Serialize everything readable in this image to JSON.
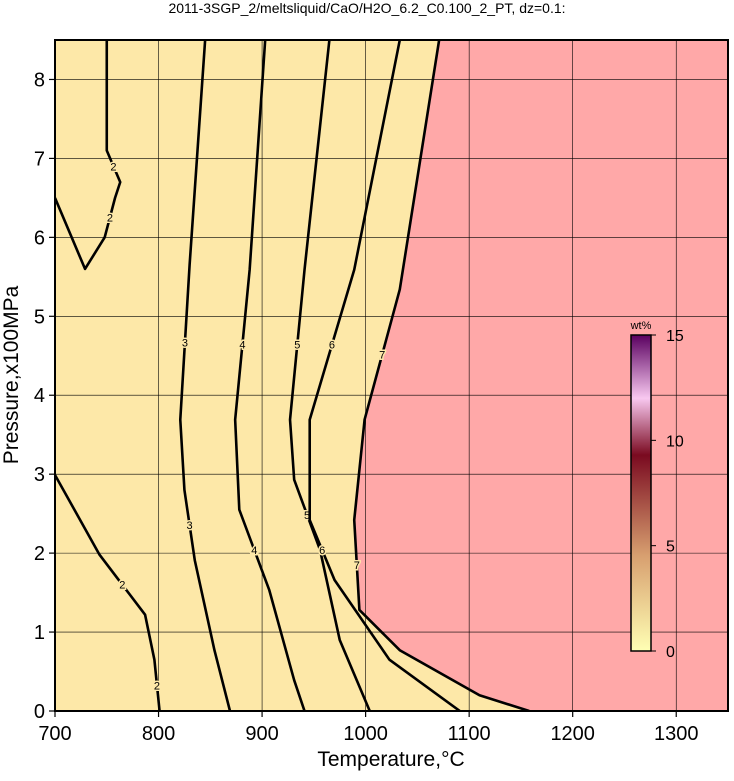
{
  "chart_data": {
    "type": "contour",
    "title": "2011-3SGP_2/meltsliquid/CaO/H2O_6.2_C0.100_2_PT, dz=0.1:",
    "x_label": "Temperature,°C",
    "y_label": "Pressure,x100MPa",
    "xlim": [
      700,
      1350
    ],
    "ylim": [
      0,
      8.5
    ],
    "xticks": [
      700,
      800,
      900,
      1000,
      1100,
      1200,
      1300
    ],
    "yticks": [
      0,
      1,
      2,
      3,
      4,
      5,
      6,
      7,
      8
    ],
    "grid": true,
    "background_color": "#fde8a8",
    "melt_color": "#ffa8a8",
    "line_color": "#000000",
    "contours": [
      {
        "level": 2,
        "x": [
          750,
          750,
          763,
          758,
          748,
          729,
          700
        ],
        "y": [
          8.5,
          7.1,
          6.7,
          6.5,
          6.0,
          5.6,
          6.5
        ]
      },
      {
        "level": 2,
        "x": [
          700,
          743,
          787,
          796,
          801
        ],
        "y": [
          2.99,
          1.98,
          1.22,
          0.65,
          0
        ]
      },
      {
        "level": 3,
        "x": [
          845,
          830,
          821,
          825,
          835,
          854,
          869
        ],
        "y": [
          8.5,
          5.65,
          3.69,
          2.8,
          1.91,
          0.77,
          0
        ]
      },
      {
        "level": 4,
        "x": [
          903,
          888,
          874,
          878,
          907,
          931,
          941
        ],
        "y": [
          8.5,
          5.59,
          3.69,
          2.55,
          1.53,
          0.39,
          0
        ]
      },
      {
        "level": 5,
        "x": [
          965,
          941,
          927,
          931,
          956,
          975,
          1004
        ],
        "y": [
          8.5,
          5.59,
          3.69,
          2.93,
          2.04,
          0.9,
          0
        ]
      },
      {
        "level": 6,
        "x": [
          1033,
          989,
          946,
          946,
          970,
          1023,
          1091
        ],
        "y": [
          8.5,
          5.59,
          3.69,
          2.42,
          1.66,
          0.65,
          0
        ]
      },
      {
        "level": 7,
        "x": [
          1071,
          1033,
          999,
          989,
          994,
          1033,
          1110,
          1158
        ],
        "y": [
          8.5,
          5.34,
          3.69,
          2.42,
          1.28,
          0.77,
          0.2,
          0
        ]
      }
    ],
    "colorbar": {
      "label": "wt%",
      "lim": [
        0,
        15
      ],
      "ticks": [
        0,
        5,
        10,
        15
      ]
    }
  }
}
